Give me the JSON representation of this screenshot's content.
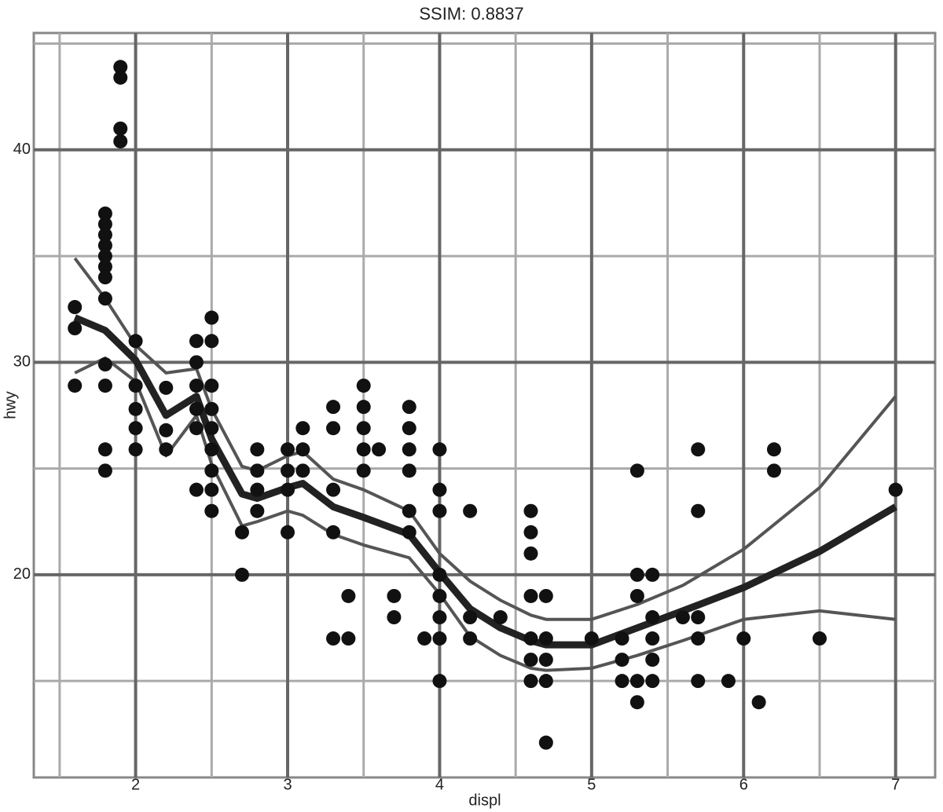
{
  "chart_data": {
    "type": "scatter",
    "title": "SSIM: 0.8837",
    "x_label": "displ",
    "y_label": "hwy",
    "xlim": [
      1.33,
      7.26
    ],
    "ylim": [
      10.46,
      45.5
    ],
    "xticks": [
      2,
      3,
      4,
      5,
      6,
      7
    ],
    "yticks": [
      20,
      30,
      40
    ],
    "xminorticks": [
      1.5,
      2.5,
      3.5,
      4.5,
      5.5,
      6.5
    ],
    "yminorticks": [
      15,
      25,
      35,
      45
    ],
    "grid": true,
    "color": "#111111",
    "x": [
      1.9,
      1.9,
      1.9,
      1.9,
      1.6,
      1.6,
      1.6,
      1.8,
      1.8,
      1.8,
      1.8,
      1.8,
      1.8,
      1.8,
      1.8,
      1.8,
      1.8,
      1.8,
      1.8,
      2.0,
      2.0,
      2.0,
      2.0,
      2.0,
      2.2,
      2.2,
      2.2,
      2.4,
      2.4,
      2.4,
      2.4,
      2.4,
      2.4,
      2.5,
      2.5,
      2.5,
      2.5,
      2.5,
      2.5,
      2.5,
      2.5,
      2.5,
      2.7,
      2.7,
      2.8,
      2.8,
      2.8,
      2.8,
      3.0,
      3.0,
      3.0,
      3.0,
      3.1,
      3.1,
      3.1,
      3.3,
      3.3,
      3.3,
      3.3,
      3.3,
      3.4,
      3.4,
      3.5,
      3.5,
      3.5,
      3.5,
      3.5,
      3.6,
      3.7,
      3.7,
      3.8,
      3.8,
      3.8,
      3.8,
      3.8,
      3.8,
      3.9,
      4.0,
      4.0,
      4.0,
      4.0,
      4.0,
      4.0,
      4.0,
      4.0,
      4.2,
      4.2,
      4.2,
      4.4,
      4.6,
      4.6,
      4.6,
      4.6,
      4.6,
      4.6,
      4.6,
      4.7,
      4.7,
      4.7,
      4.7,
      4.7,
      5.0,
      5.2,
      5.2,
      5.2,
      5.3,
      5.3,
      5.3,
      5.3,
      5.3,
      5.4,
      5.4,
      5.4,
      5.4,
      5.4,
      5.6,
      5.7,
      5.7,
      5.7,
      5.7,
      5.7,
      5.9,
      6.0,
      6.1,
      6.2,
      6.2,
      6.5,
      7.0
    ],
    "values": [
      43.9,
      43.4,
      41.0,
      40.4,
      32.6,
      31.6,
      28.9,
      37.0,
      36.5,
      36.0,
      35.5,
      35.0,
      34.5,
      34.0,
      33.0,
      29.9,
      28.9,
      25.9,
      24.9,
      31.0,
      28.9,
      27.8,
      26.9,
      25.9,
      28.8,
      26.8,
      25.9,
      31.0,
      30.0,
      28.9,
      27.8,
      26.9,
      24.0,
      32.1,
      31.0,
      28.9,
      27.8,
      26.9,
      25.9,
      24.9,
      24.0,
      23.0,
      22.0,
      20.0,
      25.9,
      24.9,
      24.0,
      23.0,
      25.9,
      24.9,
      24.0,
      22.0,
      26.9,
      25.9,
      24.9,
      27.9,
      26.9,
      24.0,
      22.0,
      17.0,
      19.0,
      17.0,
      28.9,
      27.9,
      26.9,
      25.9,
      24.9,
      25.9,
      19.0,
      18.0,
      27.9,
      26.9,
      25.9,
      24.9,
      23.0,
      22.0,
      17.0,
      25.9,
      24.0,
      23.0,
      20.0,
      19.0,
      18.0,
      17.0,
      15.0,
      23.0,
      18.0,
      17.0,
      18.0,
      23.0,
      22.0,
      21.0,
      19.0,
      17.0,
      16.0,
      15.0,
      19.0,
      17.0,
      16.0,
      15.0,
      12.1,
      17.0,
      17.0,
      16.0,
      15.0,
      24.9,
      20.0,
      19.0,
      15.0,
      14.0,
      20.0,
      18.0,
      17.0,
      16.0,
      15.0,
      18.0,
      25.9,
      23.0,
      18.0,
      17.0,
      15.0,
      15.0,
      17.0,
      14.0,
      25.9,
      24.9,
      17.0,
      24.0
    ],
    "smooth": {
      "color": "#222222",
      "band_color": "#555555",
      "x": [
        1.6,
        1.8,
        2.0,
        2.2,
        2.4,
        2.5,
        2.7,
        2.8,
        3.0,
        3.1,
        3.3,
        3.5,
        3.8,
        4.0,
        4.2,
        4.4,
        4.6,
        4.7,
        5.0,
        5.3,
        5.6,
        6.0,
        6.5,
        7.0
      ],
      "values": [
        32.1,
        31.5,
        30.1,
        27.5,
        28.4,
        26.4,
        23.8,
        23.6,
        24.1,
        24.3,
        23.2,
        22.7,
        21.9,
        20.1,
        18.4,
        17.5,
        16.9,
        16.7,
        16.7,
        17.5,
        18.3,
        19.4,
        21.1,
        23.2
      ],
      "upper": [
        34.9,
        33.0,
        30.8,
        29.5,
        29.7,
        27.8,
        25.1,
        24.9,
        25.6,
        25.8,
        24.5,
        24.0,
        23.0,
        21.0,
        19.7,
        18.8,
        18.1,
        17.9,
        17.9,
        18.6,
        19.5,
        21.2,
        24.1,
        28.4
      ],
      "lower": [
        29.5,
        30.2,
        29.1,
        25.6,
        27.5,
        25.2,
        22.3,
        22.5,
        23.0,
        22.8,
        21.9,
        21.4,
        20.8,
        19.1,
        17.1,
        16.2,
        15.6,
        15.5,
        15.6,
        16.2,
        16.9,
        17.9,
        18.3,
        17.9
      ]
    }
  }
}
